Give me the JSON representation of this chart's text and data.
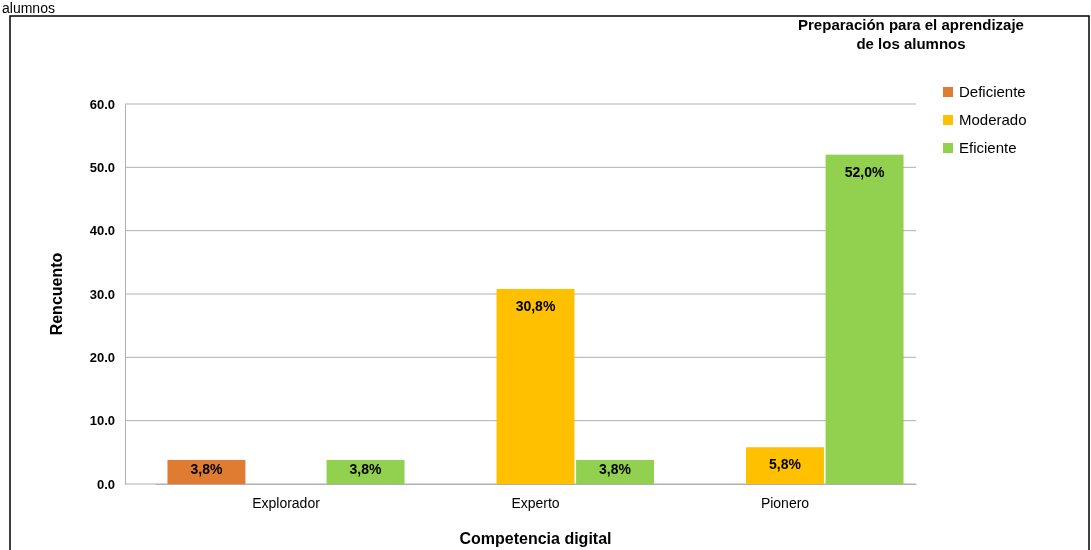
{
  "chart_data": {
    "type": "bar",
    "xlabel": "Competencia digital",
    "ylabel": "Rencuento",
    "legend_title": "Preparación para el aprendizaje de los alumnos",
    "annotations": [
      "alumnos"
    ],
    "categories": [
      "Explorador",
      "Experto",
      "Pionero"
    ],
    "series": [
      {
        "name": "Deficiente",
        "color": "#e07b32",
        "values": [
          3.8,
          null,
          null
        ],
        "value_labels": [
          "3,8%",
          null,
          null
        ]
      },
      {
        "name": "Moderado",
        "color": "#ffc000",
        "values": [
          null,
          30.8,
          5.8
        ],
        "value_labels": [
          null,
          "30,8%",
          "5,8%"
        ]
      },
      {
        "name": "Eficiente",
        "color": "#92d050",
        "values": [
          3.8,
          3.8,
          52.0
        ],
        "value_labels": [
          "3,8%",
          "3,8%",
          "52,0%"
        ]
      }
    ],
    "ylim": [
      0,
      60
    ],
    "yticks": [
      {
        "value": 0,
        "label": "0.0"
      },
      {
        "value": 10,
        "label": "10.0"
      },
      {
        "value": 20,
        "label": "20.0"
      },
      {
        "value": 30,
        "label": "30.0"
      },
      {
        "value": 40,
        "label": "40.0"
      },
      {
        "value": 50,
        "label": "50.0"
      },
      {
        "value": 60,
        "label": "60.0"
      }
    ],
    "grid": "y",
    "legend": "top right"
  }
}
